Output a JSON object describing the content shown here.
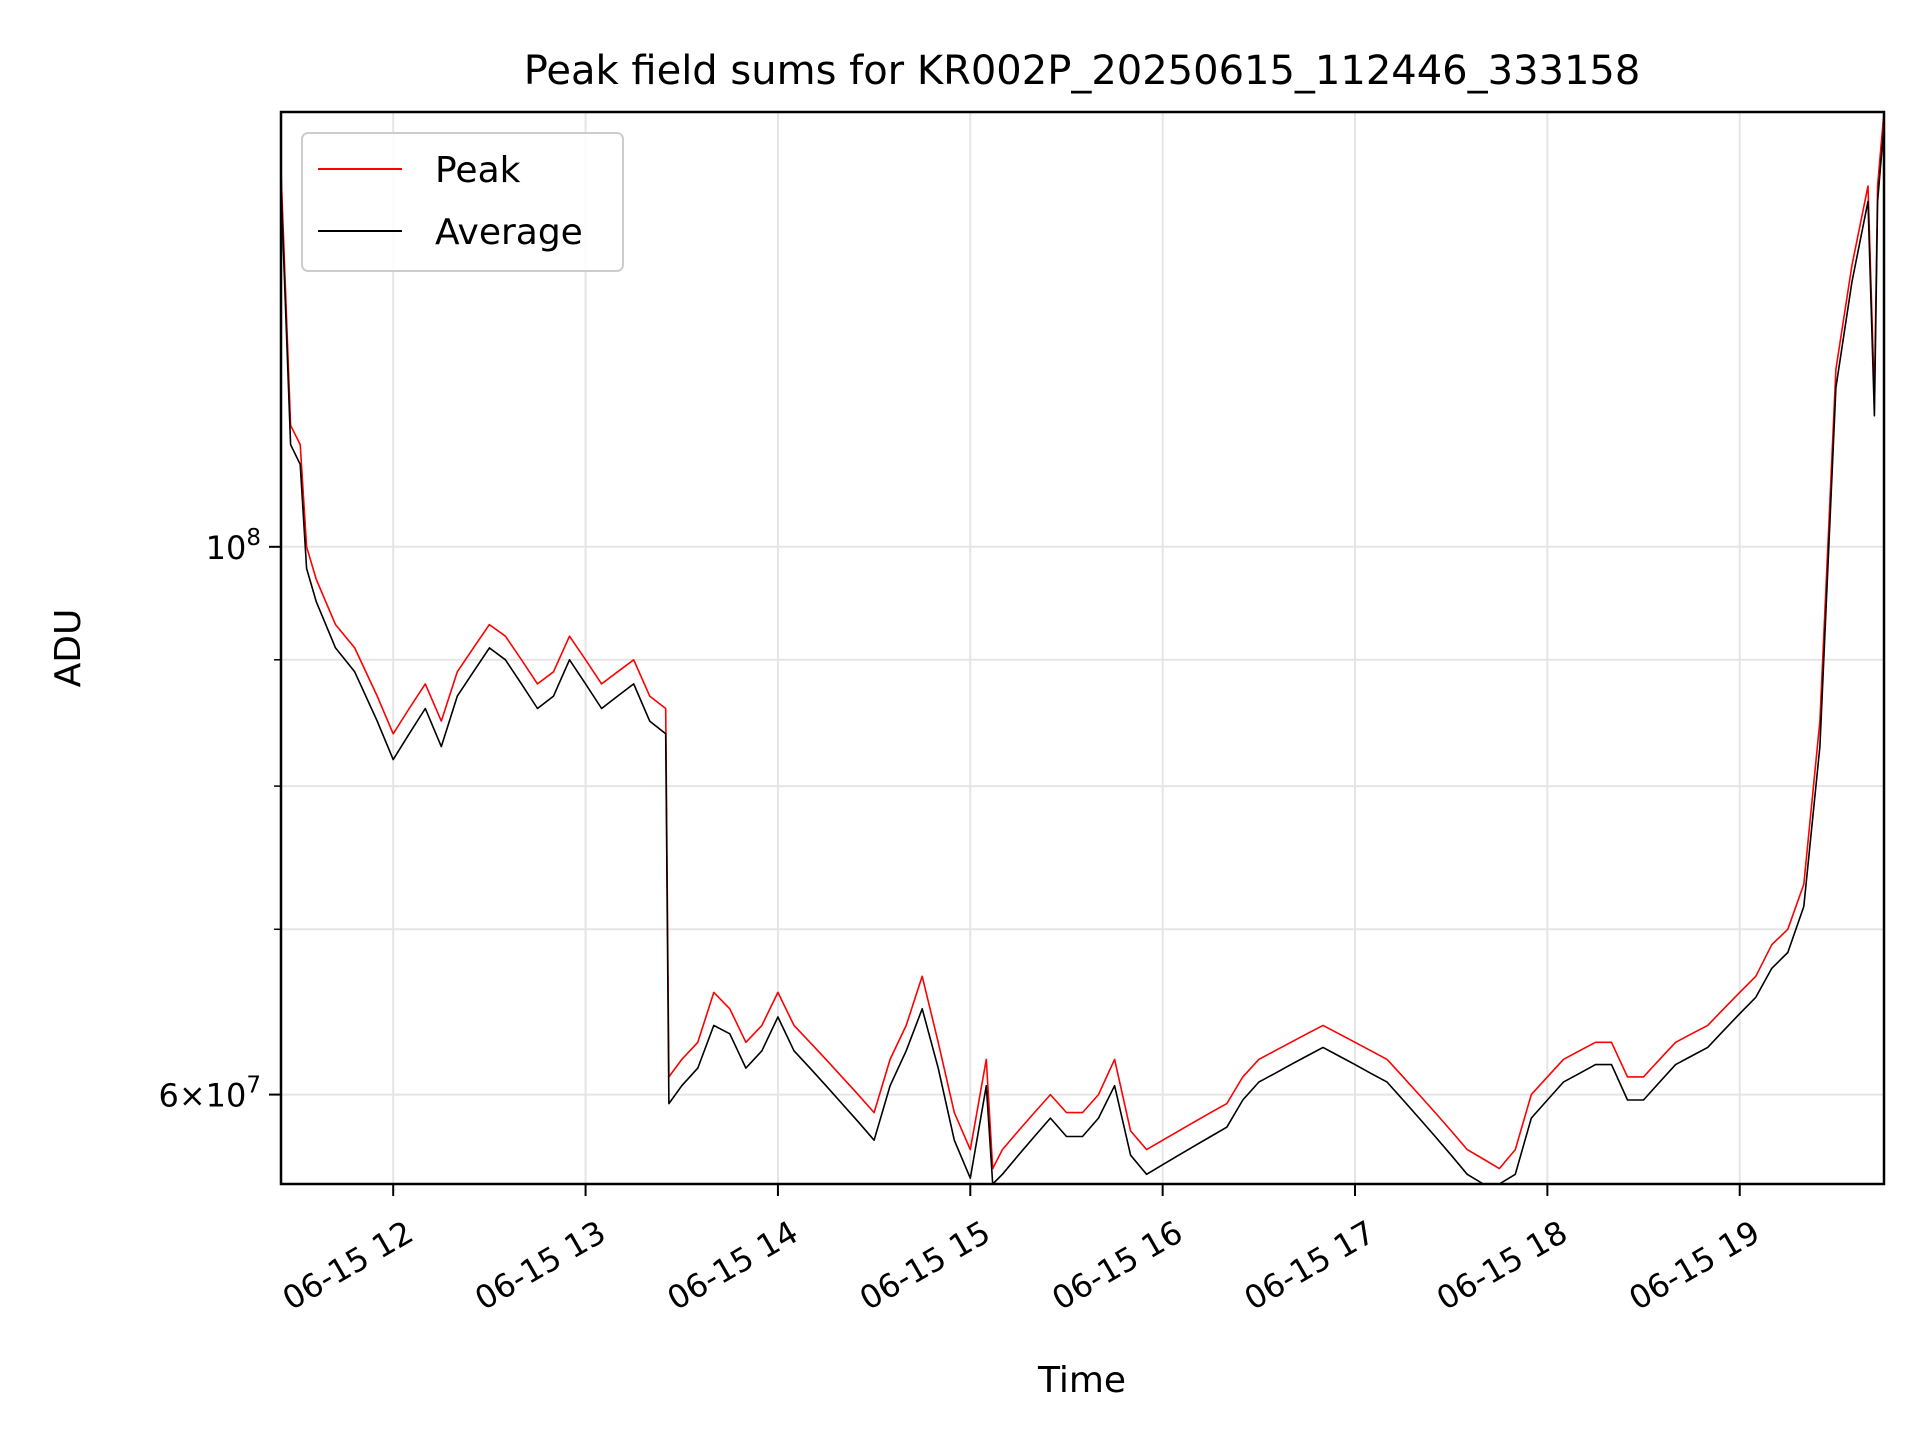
{
  "chart_data": {
    "type": "line",
    "title": "Peak field sums for KR002P_20250615_112446_333158",
    "xlabel": "Time",
    "ylabel": "ADU",
    "yscale": "log",
    "xlim": [
      "2025-06-15 11:25",
      "2025-06-15 19:45"
    ],
    "ylim": [
      55200000,
      150000000
    ],
    "x_ticks": [
      "06-15 12",
      "06-15 13",
      "06-15 14",
      "06-15 15",
      "06-15 16",
      "06-15 17",
      "06-15 18",
      "06-15 19"
    ],
    "y_major_ticks": [
      {
        "value": 100000000,
        "base": "10",
        "exp": "8"
      },
      {
        "value": 60000000,
        "mant": "6",
        "base": "10",
        "exp": "7"
      }
    ],
    "y_minor_ticks": [
      70000000,
      80000000,
      90000000
    ],
    "grid": true,
    "legend_position": "upper-left",
    "colors": {
      "peak": "#ff0000",
      "average": "#000000",
      "grid": "#e5e5e5"
    },
    "series": [
      {
        "name": "Peak",
        "color": "#ff0000",
        "x": [
          "11:25",
          "11:28",
          "11:31",
          "11:33",
          "11:36",
          "11:42",
          "11:48",
          "11:55",
          "12:00",
          "12:05",
          "12:10",
          "12:15",
          "12:20",
          "12:25",
          "12:30",
          "12:35",
          "12:40",
          "12:45",
          "12:50",
          "12:55",
          "13:00",
          "13:05",
          "13:10",
          "13:15",
          "13:20",
          "13:25",
          "13:26",
          "13:30",
          "13:35",
          "13:40",
          "13:45",
          "13:50",
          "13:55",
          "14:00",
          "14:05",
          "14:10",
          "14:15",
          "14:20",
          "14:25",
          "14:30",
          "14:35",
          "14:40",
          "14:45",
          "14:50",
          "14:55",
          "15:00",
          "15:05",
          "15:07",
          "15:10",
          "15:15",
          "15:20",
          "15:25",
          "15:30",
          "15:35",
          "15:40",
          "15:45",
          "15:50",
          "15:55",
          "16:00",
          "16:05",
          "16:10",
          "16:15",
          "16:20",
          "16:25",
          "16:30",
          "16:35",
          "16:40",
          "16:45",
          "16:50",
          "16:55",
          "17:00",
          "17:05",
          "17:10",
          "17:15",
          "17:20",
          "17:25",
          "17:30",
          "17:35",
          "17:40",
          "17:45",
          "17:50",
          "17:55",
          "18:00",
          "18:05",
          "18:10",
          "18:15",
          "18:20",
          "18:25",
          "18:30",
          "18:35",
          "18:40",
          "18:45",
          "18:50",
          "18:55",
          "19:00",
          "19:05",
          "19:10",
          "19:15",
          "19:20",
          "19:25",
          "19:30",
          "19:35",
          "19:40",
          "19:42",
          "19:43",
          "19:44",
          "19:45"
        ],
        "y": [
          142000000,
          112000000,
          110000000,
          100000000,
          97000000,
          93000000,
          91000000,
          87000000,
          84000000,
          86000000,
          88000000,
          85000000,
          89000000,
          91000000,
          93000000,
          92000000,
          90000000,
          88000000,
          89000000,
          92000000,
          90000000,
          88000000,
          89000000,
          90000000,
          87000000,
          86000000,
          61000000,
          62000000,
          63000000,
          66000000,
          65000000,
          63000000,
          64000000,
          66000000,
          64000000,
          63000000,
          62000000,
          61000000,
          60000000,
          59000000,
          62000000,
          64000000,
          67000000,
          63000000,
          59000000,
          57000000,
          62000000,
          56000000,
          57000000,
          58000000,
          59000000,
          60000000,
          59000000,
          59000000,
          60000000,
          62000000,
          58000000,
          57000000,
          57500000,
          58000000,
          58500000,
          59000000,
          59500000,
          61000000,
          62000000,
          62500000,
          63000000,
          63500000,
          64000000,
          63500000,
          63000000,
          62500000,
          62000000,
          61000000,
          60000000,
          59000000,
          58000000,
          57000000,
          56500000,
          56000000,
          57000000,
          60000000,
          61000000,
          62000000,
          62500000,
          63000000,
          63000000,
          61000000,
          61000000,
          62000000,
          63000000,
          63500000,
          64000000,
          65000000,
          66000000,
          67000000,
          69000000,
          70000000,
          73000000,
          85000000,
          118000000,
          130000000,
          140000000,
          115000000,
          140000000,
          145000000,
          150000000
        ]
      },
      {
        "name": "Average",
        "color": "#000000",
        "x": [
          "11:25",
          "11:28",
          "11:31",
          "11:33",
          "11:36",
          "11:42",
          "11:48",
          "11:55",
          "12:00",
          "12:05",
          "12:10",
          "12:15",
          "12:20",
          "12:25",
          "12:30",
          "12:35",
          "12:40",
          "12:45",
          "12:50",
          "12:55",
          "13:00",
          "13:05",
          "13:10",
          "13:15",
          "13:20",
          "13:25",
          "13:26",
          "13:30",
          "13:35",
          "13:40",
          "13:45",
          "13:50",
          "13:55",
          "14:00",
          "14:05",
          "14:10",
          "14:15",
          "14:20",
          "14:25",
          "14:30",
          "14:35",
          "14:40",
          "14:45",
          "14:50",
          "14:55",
          "15:00",
          "15:05",
          "15:07",
          "15:10",
          "15:15",
          "15:20",
          "15:25",
          "15:30",
          "15:35",
          "15:40",
          "15:45",
          "15:50",
          "15:55",
          "16:00",
          "16:05",
          "16:10",
          "16:15",
          "16:20",
          "16:25",
          "16:30",
          "16:35",
          "16:40",
          "16:45",
          "16:50",
          "16:55",
          "17:00",
          "17:05",
          "17:10",
          "17:15",
          "17:20",
          "17:25",
          "17:30",
          "17:35",
          "17:40",
          "17:45",
          "17:50",
          "17:55",
          "18:00",
          "18:05",
          "18:10",
          "18:15",
          "18:20",
          "18:25",
          "18:30",
          "18:35",
          "18:40",
          "18:45",
          "18:50",
          "18:55",
          "19:00",
          "19:05",
          "19:10",
          "19:15",
          "19:20",
          "19:25",
          "19:30",
          "19:35",
          "19:40",
          "19:42",
          "19:43",
          "19:44",
          "19:45"
        ],
        "y": [
          140000000,
          110000000,
          108000000,
          98000000,
          95000000,
          91000000,
          89000000,
          85000000,
          82000000,
          84000000,
          86000000,
          83000000,
          87000000,
          89000000,
          91000000,
          90000000,
          88000000,
          86000000,
          87000000,
          90000000,
          88000000,
          86000000,
          87000000,
          88000000,
          85000000,
          84000000,
          59500000,
          60500000,
          61500000,
          64000000,
          63500000,
          61500000,
          62500000,
          64500000,
          62500000,
          61500000,
          60500000,
          59500000,
          58500000,
          57500000,
          60500000,
          62500000,
          65000000,
          61500000,
          57500000,
          55500000,
          60500000,
          55000000,
          55700000,
          56700000,
          57700000,
          58700000,
          57700000,
          57700000,
          58700000,
          60500000,
          56700000,
          55700000,
          56200000,
          56700000,
          57200000,
          57700000,
          58200000,
          59700000,
          60700000,
          61200000,
          61700000,
          62200000,
          62700000,
          62200000,
          61700000,
          61200000,
          60700000,
          59700000,
          58700000,
          57700000,
          56700000,
          55700000,
          55200000,
          54700000,
          55700000,
          58700000,
          59700000,
          60700000,
          61200000,
          61700000,
          61700000,
          59700000,
          59700000,
          60700000,
          61700000,
          62200000,
          62700000,
          63700000,
          64700000,
          65700000,
          67500000,
          68500000,
          71500000,
          83000000,
          116000000,
          128000000,
          138000000,
          113000000,
          138000000,
          143000000,
          148000000
        ]
      }
    ]
  }
}
